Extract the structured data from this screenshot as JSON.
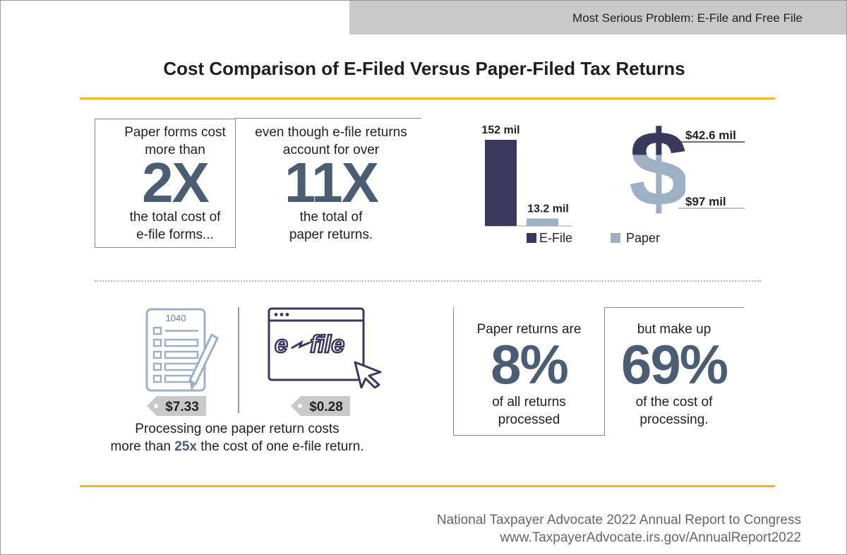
{
  "header": {
    "section": "Most Serious Problem: E-File and Free File"
  },
  "title": "Cost Comparison of E-Filed Versus Paper-Filed Tax Returns",
  "stat_cost": {
    "line1": "Paper forms cost",
    "line2": "more than",
    "big": "2X",
    "line3": "the total cost of",
    "line4": "e-file forms..."
  },
  "stat_volume": {
    "line1": "even though e-file returns",
    "line2": "account for over",
    "big": "11X",
    "line3": "the total of",
    "line4": "paper returns."
  },
  "chart_data": [
    {
      "type": "bar",
      "categories": [
        "E-File",
        "Paper"
      ],
      "values": [
        152,
        13.2
      ],
      "data_labels": [
        "152 mil",
        "13.2 mil"
      ],
      "legend": [
        "E-File",
        "Paper"
      ],
      "colors": {
        "efile": "#3b385e",
        "paper": "#9eb0c3"
      }
    },
    {
      "type": "pie",
      "categories": [
        "E-File",
        "Paper"
      ],
      "values": [
        42.6,
        97
      ],
      "data_labels": [
        "$42.6 mil",
        "$97 mil"
      ],
      "colors": {
        "efile": "#3b385e",
        "paper": "#9eb0c3"
      }
    }
  ],
  "unit_cost": {
    "form_number": "1040",
    "paper_price": "$7.33",
    "efile_logo_left": "e",
    "efile_logo_right": "file",
    "efile_price": "$0.28",
    "caption_part1": "Processing one paper return costs",
    "caption_part2": "more than ",
    "caption_highlight": "25x",
    "caption_part3": " the cost of one e-file return."
  },
  "stat_share": {
    "line1": "Paper returns are",
    "big": "8%",
    "line3": "of all returns",
    "line4": "processed"
  },
  "stat_share_cost": {
    "line1": "but make up",
    "big": "69%",
    "line3": "of the cost of",
    "line4": "processing."
  },
  "footer": {
    "line1": "National Taxpayer Advocate 2022 Annual Report to Congress",
    "line2": "www.TaxpayerAdvocate.irs.gov/AnnualReport2022"
  },
  "colors": {
    "accent_gold": "#f2b71f",
    "dark_navy": "#3b385e",
    "light_blue": "#9eb0c3",
    "stat_blue": "#4b5d72"
  }
}
